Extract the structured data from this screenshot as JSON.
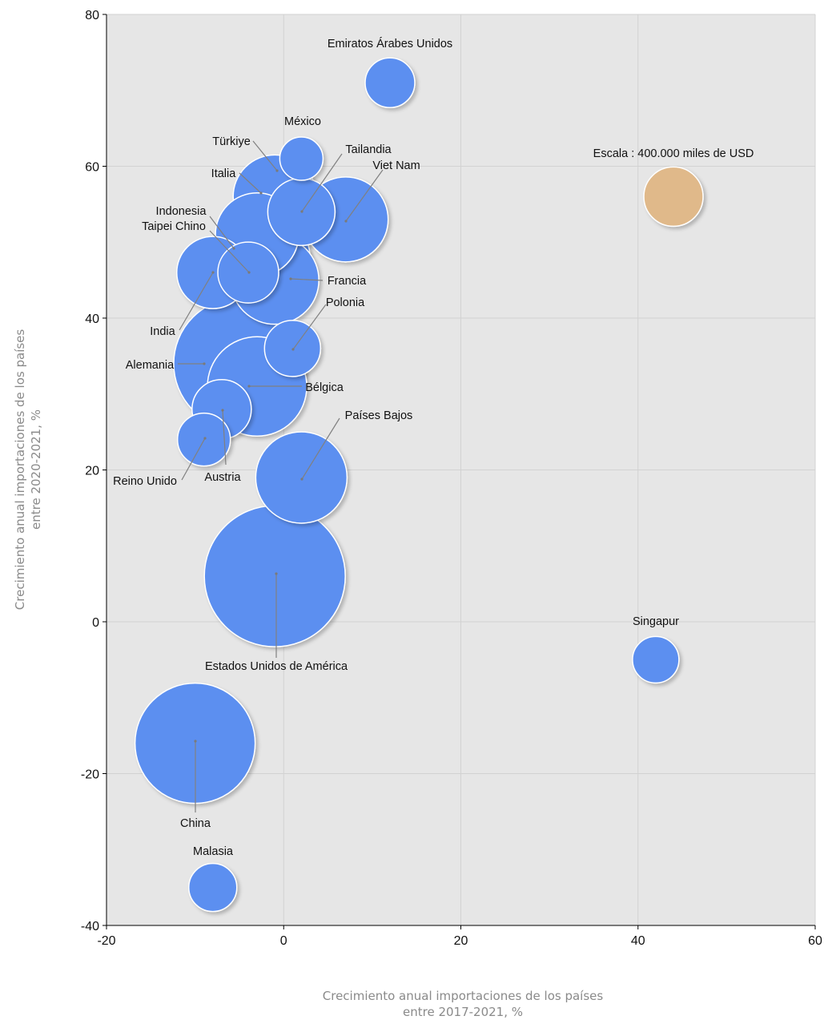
{
  "chart_data": {
    "type": "bubble",
    "xlabel_lines": [
      "Crecimiento anual importaciones de los países",
      "entre 2017-2021, %"
    ],
    "ylabel_lines": [
      "Crecimiento anual importaciones de los países",
      "entre 2020-2021, %"
    ],
    "xlim": [
      -20,
      60
    ],
    "ylim": [
      -40,
      80
    ],
    "x_ticks": [
      -20,
      0,
      20,
      40,
      60
    ],
    "y_ticks": [
      -40,
      -20,
      0,
      20,
      40,
      60,
      80
    ],
    "x_tick_labels": [
      "-20",
      "0",
      "20",
      "40",
      "60"
    ],
    "y_tick_labels": [
      "-40",
      "-20",
      "0",
      "20",
      "40",
      "60",
      "80"
    ],
    "grid": true,
    "colors": {
      "bubble": "#5b8ff0",
      "scale_bubble": "#e0b98a",
      "plot_bg": "#e6e6e6"
    },
    "scale": {
      "label": "Escala : 400.000 miles de USD",
      "x": 44,
      "y": 56,
      "value": 400000
    },
    "points": [
      {
        "name": "Emiratos Árabes Unidos",
        "x": 12,
        "y": 71
      },
      {
        "name": "México",
        "x": 2,
        "y": 61
      },
      {
        "name": "Türkiye",
        "x": 2,
        "y": 54
      },
      {
        "name": "Italia",
        "x": 0,
        "y": 55
      },
      {
        "name": "Tailandia",
        "x": 2,
        "y": 54
      },
      {
        "name": "Viet Nam",
        "x": 7,
        "y": 53
      },
      {
        "name": "Indonesia",
        "x": -3,
        "y": 51
      },
      {
        "name": "Taipei Chino",
        "x": -4,
        "y": 46
      },
      {
        "name": "Francia",
        "x": -1,
        "y": 46
      },
      {
        "name": "India",
        "x": -8,
        "y": 46
      },
      {
        "name": "Polonia",
        "x": 1,
        "y": 36
      },
      {
        "name": "Alemania",
        "x": -3,
        "y": 42
      },
      {
        "name": "Bélgica",
        "x": -4,
        "y": 31
      },
      {
        "name": "Austria",
        "x": -7,
        "y": 28
      },
      {
        "name": "Reino Unido",
        "x": -9,
        "y": 24
      },
      {
        "name": "Países Bajos",
        "x": 2,
        "y": 19
      },
      {
        "name": "Estados Unidos de América",
        "x": -1,
        "y": 6
      },
      {
        "name": "Singapur",
        "x": 42,
        "y": -5
      },
      {
        "name": "China",
        "x": -10,
        "y": -16
      },
      {
        "name": "Malasia",
        "x": -8,
        "y": -35
      }
    ]
  }
}
